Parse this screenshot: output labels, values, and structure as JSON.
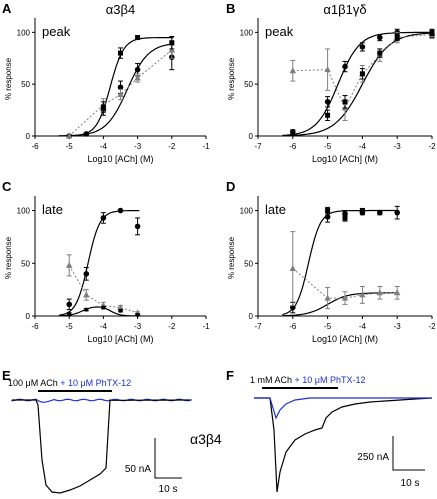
{
  "chart_data": [
    {
      "panel": "A",
      "title": "α3β4",
      "tag": "peak",
      "type": "scatter",
      "xlabel": "Log10 [ACh] (M)",
      "ylabel": "% response",
      "xlim": [
        -6,
        -1
      ],
      "ylim": [
        0,
        110
      ],
      "xticks": [
        -6,
        -5,
        -4,
        -3,
        -2,
        -1
      ],
      "yticks": [
        0,
        50,
        100
      ],
      "series": [
        {
          "style": "black",
          "x": [
            -5,
            -4.5,
            -4,
            -3.5,
            -3,
            -2
          ],
          "y": [
            0,
            2,
            25,
            47,
            64,
            76
          ],
          "err": [
            0,
            1,
            5,
            6,
            6,
            12
          ]
        },
        {
          "style": "grey",
          "x": [
            -5,
            -4,
            -3.5,
            -3,
            -2
          ],
          "y": [
            0,
            30,
            40,
            56,
            83
          ],
          "err": [
            0,
            6,
            5,
            4,
            8
          ]
        },
        {
          "style": "black-square",
          "x": [
            -4,
            -3.5,
            -3,
            -2
          ],
          "y": [
            28,
            80,
            95,
            90
          ],
          "err": [
            5,
            5,
            0,
            6
          ]
        }
      ],
      "fits": [
        {
          "color": "black",
          "top": 95,
          "ec50": -3.8,
          "hill": 2.2
        },
        {
          "color": "black",
          "top": 90,
          "ec50": -3.3,
          "hill": 1.4
        }
      ]
    },
    {
      "panel": "B",
      "title": "α1β1γδ",
      "tag": "peak",
      "type": "scatter",
      "xlabel": "Log10 [ACh] (M)",
      "ylabel": "% response",
      "xlim": [
        -7,
        -2
      ],
      "ylim": [
        0,
        110
      ],
      "xticks": [
        -7,
        -6,
        -5,
        -4,
        -3,
        -2
      ],
      "yticks": [
        0,
        50,
        100
      ],
      "series": [
        {
          "style": "black",
          "x": [
            -6,
            -5,
            -4.5,
            -4,
            -3.5,
            -3,
            -2
          ],
          "y": [
            4,
            33,
            67,
            86,
            95,
            100,
            98
          ],
          "err": [
            2,
            5,
            5,
            4,
            3,
            3,
            3
          ]
        },
        {
          "style": "grey",
          "x": [
            -6,
            -5,
            -4.5,
            -4,
            -3.5,
            -3,
            -2
          ],
          "y": [
            63,
            64,
            27,
            60,
            78,
            95,
            98
          ],
          "err": [
            10,
            20,
            12,
            8,
            6,
            5,
            4
          ]
        },
        {
          "style": "black-square",
          "x": [
            -5,
            -4.5,
            -4,
            -3.5,
            -3,
            -2
          ],
          "y": [
            20,
            33,
            60,
            80,
            95,
            100
          ],
          "err": [
            5,
            6,
            5,
            4,
            3,
            3
          ]
        }
      ],
      "fits": [
        {
          "color": "black",
          "top": 100,
          "ec50": -4.7,
          "hill": 1.4
        },
        {
          "color": "black",
          "top": 100,
          "ec50": -4.0,
          "hill": 1.1
        }
      ]
    },
    {
      "panel": "C",
      "title": "",
      "tag": "late",
      "type": "scatter",
      "xlabel": "Log10 [ACh] (M)",
      "ylabel": "% response",
      "xlim": [
        -6,
        -1
      ],
      "ylim": [
        0,
        110
      ],
      "xticks": [
        -6,
        -5,
        -4,
        -3,
        -2,
        -1
      ],
      "yticks": [
        0,
        50,
        100
      ],
      "series": [
        {
          "style": "black",
          "x": [
            -5,
            -4.5,
            -4,
            -3.5,
            -3
          ],
          "y": [
            11,
            40,
            93,
            100,
            85
          ],
          "err": [
            5,
            6,
            5,
            0,
            8
          ]
        },
        {
          "style": "grey",
          "x": [
            -5,
            -4.5,
            -4,
            -3.5,
            -3
          ],
          "y": [
            48,
            20,
            10,
            8,
            3
          ],
          "err": [
            10,
            5,
            3,
            2,
            1
          ]
        },
        {
          "style": "black-small",
          "x": [
            -5,
            -4.5,
            -4,
            -3.5,
            -3
          ],
          "y": [
            2,
            6,
            8,
            5,
            1
          ],
          "err": [
            1,
            1,
            1,
            1,
            1
          ]
        }
      ],
      "fits": [
        {
          "color": "black",
          "top": 100,
          "ec50": -4.45,
          "hill": 2.5
        },
        {
          "color": "black",
          "top": 10,
          "ec50": -4.6,
          "hill": 2.5,
          "peaked": true
        }
      ]
    },
    {
      "panel": "D",
      "title": "",
      "tag": "late",
      "type": "scatter",
      "xlabel": "Log10 [ACh] (M)",
      "ylabel": "% response",
      "xlim": [
        -7,
        -2
      ],
      "ylim": [
        0,
        110
      ],
      "xticks": [
        -7,
        -6,
        -5,
        -4,
        -3,
        -2
      ],
      "yticks": [
        0,
        50,
        100
      ],
      "series": [
        {
          "style": "black",
          "x": [
            -6,
            -5,
            -4.5,
            -4,
            -3.5,
            -3
          ],
          "y": [
            8,
            94,
            97,
            98,
            98,
            98
          ],
          "err": [
            5,
            5,
            3,
            2,
            2,
            6
          ]
        },
        {
          "style": "grey",
          "x": [
            -6,
            -5,
            -4.5,
            -4,
            -3.5,
            -3
          ],
          "y": [
            45,
            17,
            17,
            20,
            22,
            22
          ],
          "err": [
            35,
            10,
            6,
            8,
            6,
            6
          ]
        },
        {
          "style": "black-square",
          "x": [
            -5,
            -4.5,
            -4
          ],
          "y": [
            100,
            93,
            100
          ],
          "err": [
            3,
            3,
            2
          ]
        }
      ],
      "fits": [
        {
          "color": "black",
          "top": 100,
          "ec50": -5.55,
          "hill": 2.5
        },
        {
          "color": "black",
          "top": 22,
          "ec50": -5.0,
          "hill": 1.5
        }
      ]
    }
  ],
  "traces": {
    "E": {
      "panel": "E",
      "label_black": "100 μM ACh",
      "label_blue": " + 10 μM PhTX-12",
      "scale_amp": "50 nA",
      "scale_time": "10 s"
    },
    "F": {
      "panel": "F",
      "label_black": "1 mM ACh",
      "label_blue": " + 10 μM PhTX-12",
      "scale_amp": "250 nA",
      "scale_time": "10 s"
    },
    "receptor_label": "α3β4"
  },
  "colors": {
    "black": "#000000",
    "grey": "#7f7f7f",
    "blue": "#1f2fd0"
  }
}
